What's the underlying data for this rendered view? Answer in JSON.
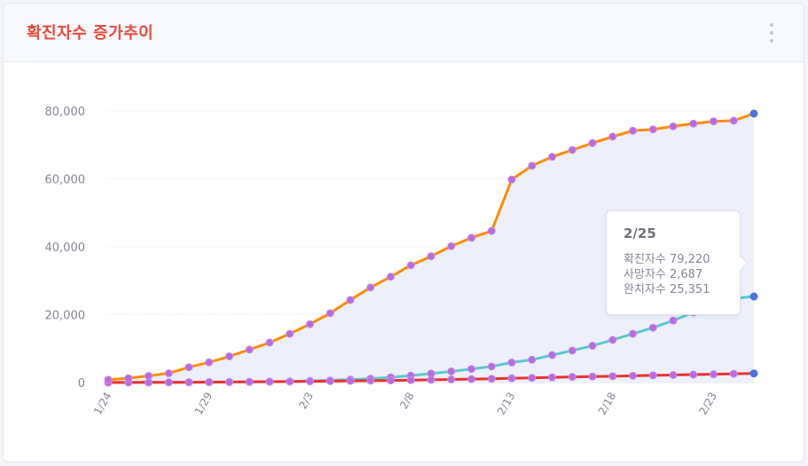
{
  "header": {
    "title": "확진자수 증가추이"
  },
  "tooltip": {
    "title": "2/25",
    "rows": [
      {
        "label": "확진자수",
        "value": "79,220"
      },
      {
        "label": "사망자수",
        "value": "2,687"
      },
      {
        "label": "완치자수",
        "value": "25,351"
      }
    ]
  },
  "chart_data": {
    "type": "line",
    "title": "",
    "xlabel": "",
    "ylabel": "",
    "ylim": [
      0,
      80000
    ],
    "yticks": [
      "0",
      "20,000",
      "40,000",
      "60,000",
      "80,000"
    ],
    "xtick_labels": [
      "1/24",
      "1/29",
      "2/3",
      "2/8",
      "2/13",
      "2/18",
      "2/23"
    ],
    "x": [
      "1/24",
      "1/25",
      "1/26",
      "1/27",
      "1/28",
      "1/29",
      "1/30",
      "1/31",
      "2/1",
      "2/2",
      "2/3",
      "2/4",
      "2/5",
      "2/6",
      "2/7",
      "2/8",
      "2/9",
      "2/10",
      "2/11",
      "2/12",
      "2/13",
      "2/14",
      "2/15",
      "2/16",
      "2/17",
      "2/18",
      "2/19",
      "2/20",
      "2/21",
      "2/22",
      "2/23",
      "2/24",
      "2/25"
    ],
    "series": [
      {
        "name": "확진자수",
        "color": "#ff8c00",
        "values": [
          830,
          1287,
          1975,
          2744,
          4515,
          5974,
          7711,
          9692,
          11791,
          14380,
          17205,
          20438,
          24324,
          28018,
          31161,
          34546,
          37198,
          40171,
          42638,
          44653,
          59804,
          63851,
          66492,
          68500,
          70548,
          72436,
          74185,
          74576,
          75465,
          76288,
          76936,
          77150,
          79220
        ]
      },
      {
        "name": "사망자수",
        "color": "#e8332d",
        "values": [
          25,
          41,
          56,
          80,
          106,
          132,
          170,
          213,
          259,
          304,
          361,
          425,
          490,
          563,
          636,
          722,
          811,
          908,
          1016,
          1113,
          1259,
          1380,
          1523,
          1665,
          1770,
          1868,
          2004,
          2118,
          2236,
          2345,
          2442,
          2592,
          2687
        ]
      },
      {
        "name": "완치자수",
        "color": "#5bc8cf",
        "values": [
          34,
          38,
          51,
          58,
          63,
          107,
          124,
          171,
          243,
          328,
          475,
          632,
          892,
          1153,
          1540,
          2050,
          2649,
          3281,
          3996,
          4740,
          5911,
          6723,
          8096,
          9419,
          10844,
          12552,
          14376,
          16155,
          18264,
          20659,
          22888,
          24734,
          25351
        ]
      }
    ],
    "marker_color": "#b86be0",
    "last_marker_color": "#4e73df",
    "area_fill": "#edf0fb",
    "grid": true,
    "legend": "none"
  }
}
